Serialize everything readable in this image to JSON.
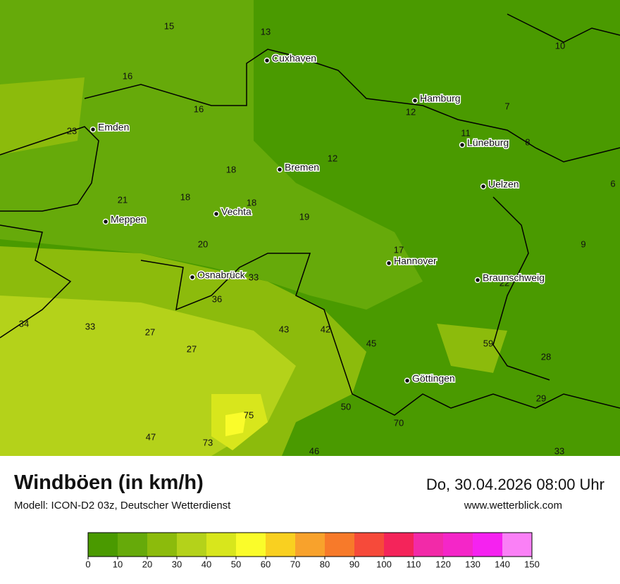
{
  "header": {
    "title": "Windböen (in km/h)",
    "subtitle": "Modell: ICON-D2 03z, Deutscher Wetterdienst",
    "date": "Do, 30.04.2026 08:00 Uhr",
    "website": "www.wetterblick.com"
  },
  "cities": [
    "Cuxhaven",
    "Hamburg",
    "Emden",
    "Lüneburg",
    "Bremen",
    "Uelzen",
    "Vechta",
    "Meppen",
    "Hannover",
    "Osnabrück",
    "Braunschweig",
    "Göttingen"
  ],
  "wind_labels": [
    15,
    13,
    10,
    16,
    16,
    12,
    7,
    23,
    11,
    8,
    12,
    18,
    6,
    21,
    18,
    18,
    19,
    20,
    17,
    9,
    33,
    22,
    36,
    34,
    33,
    27,
    43,
    42,
    45,
    59,
    27,
    28,
    29,
    50,
    75,
    70,
    47,
    73,
    46,
    33
  ],
  "legend": {
    "colors": [
      "#4a9a00",
      "#66aa0a",
      "#8cbb0c",
      "#b4d21a",
      "#d8e61c",
      "#fafc2a",
      "#f9d020",
      "#f8a22c",
      "#f77a2a",
      "#f64a3a",
      "#f4245a",
      "#f22aa8",
      "#f426c8",
      "#f522f0",
      "#fa80f6"
    ],
    "ticks": [
      0,
      10,
      20,
      30,
      40,
      50,
      60,
      70,
      80,
      90,
      100,
      110,
      120,
      130,
      140,
      150
    ]
  }
}
